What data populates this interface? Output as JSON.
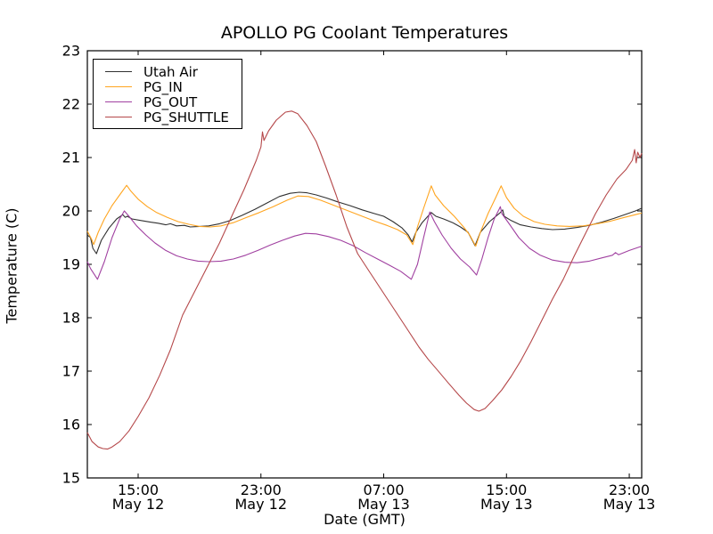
{
  "figure": {
    "background": "#ffffff"
  },
  "chart_data": {
    "type": "line",
    "title": "APOLLO PG Coolant Temperatures",
    "xlabel": "Date (GMT)",
    "ylabel": "Temperature (C)",
    "grid": false,
    "legend_position": "upper left",
    "x_unit": "hours since May 12 00:00 GMT",
    "x_range": [
      11.69,
      47.81
    ],
    "y_range": [
      15,
      23
    ],
    "y_ticks": [
      15,
      16,
      17,
      18,
      19,
      20,
      21,
      22,
      23
    ],
    "x_ticks": [
      {
        "value": 15,
        "time": "15:00",
        "date": "May 12"
      },
      {
        "value": 23,
        "time": "23:00",
        "date": "May 12"
      },
      {
        "value": 31,
        "time": "07:00",
        "date": "May 13"
      },
      {
        "value": 39,
        "time": "15:00",
        "date": "May 13"
      },
      {
        "value": 47,
        "time": "23:00",
        "date": "May 13"
      }
    ],
    "series": [
      {
        "name": "Utah Air",
        "color": "#303030",
        "points": [
          [
            11.69,
            19.55
          ],
          [
            11.9,
            19.5
          ],
          [
            12.05,
            19.3
          ],
          [
            12.28,
            19.2
          ],
          [
            12.6,
            19.45
          ],
          [
            13.1,
            19.68
          ],
          [
            13.6,
            19.85
          ],
          [
            14.0,
            19.93
          ],
          [
            14.15,
            19.88
          ],
          [
            14.3,
            19.9
          ],
          [
            14.6,
            19.85
          ],
          [
            15.2,
            19.82
          ],
          [
            15.8,
            19.79
          ],
          [
            16.3,
            19.77
          ],
          [
            16.8,
            19.74
          ],
          [
            17.1,
            19.76
          ],
          [
            17.5,
            19.72
          ],
          [
            18.0,
            19.73
          ],
          [
            18.4,
            19.7
          ],
          [
            19.0,
            19.71
          ],
          [
            19.6,
            19.72
          ],
          [
            20.3,
            19.76
          ],
          [
            21.0,
            19.82
          ],
          [
            21.8,
            19.92
          ],
          [
            22.6,
            20.03
          ],
          [
            23.4,
            20.15
          ],
          [
            24.2,
            20.27
          ],
          [
            24.9,
            20.33
          ],
          [
            25.5,
            20.35
          ],
          [
            26.0,
            20.34
          ],
          [
            26.6,
            20.3
          ],
          [
            27.3,
            20.24
          ],
          [
            28.0,
            20.17
          ],
          [
            28.8,
            20.1
          ],
          [
            29.6,
            20.02
          ],
          [
            30.4,
            19.95
          ],
          [
            31.0,
            19.9
          ],
          [
            31.6,
            19.8
          ],
          [
            32.2,
            19.68
          ],
          [
            32.6,
            19.55
          ],
          [
            32.85,
            19.42
          ],
          [
            33.1,
            19.6
          ],
          [
            33.5,
            19.78
          ],
          [
            34.1,
            19.97
          ],
          [
            34.4,
            19.9
          ],
          [
            34.9,
            19.85
          ],
          [
            35.5,
            19.78
          ],
          [
            36.0,
            19.7
          ],
          [
            36.5,
            19.6
          ],
          [
            36.95,
            19.35
          ],
          [
            37.3,
            19.6
          ],
          [
            37.9,
            19.8
          ],
          [
            38.6,
            19.97
          ],
          [
            38.75,
            20.02
          ],
          [
            38.85,
            19.9
          ],
          [
            39.3,
            19.82
          ],
          [
            39.9,
            19.74
          ],
          [
            40.6,
            19.7
          ],
          [
            41.3,
            19.67
          ],
          [
            42.0,
            19.65
          ],
          [
            42.8,
            19.66
          ],
          [
            43.6,
            19.69
          ],
          [
            44.4,
            19.73
          ],
          [
            45.2,
            19.79
          ],
          [
            46.0,
            19.86
          ],
          [
            46.8,
            19.94
          ],
          [
            47.4,
            20.0
          ],
          [
            47.81,
            20.05
          ]
        ]
      },
      {
        "name": "PG_IN",
        "color": "#ffa520",
        "points": [
          [
            11.69,
            19.62
          ],
          [
            11.95,
            19.48
          ],
          [
            12.1,
            19.37
          ],
          [
            12.4,
            19.6
          ],
          [
            12.8,
            19.85
          ],
          [
            13.3,
            20.1
          ],
          [
            13.8,
            20.3
          ],
          [
            14.25,
            20.48
          ],
          [
            14.5,
            20.38
          ],
          [
            15.0,
            20.22
          ],
          [
            15.6,
            20.08
          ],
          [
            16.2,
            19.97
          ],
          [
            16.9,
            19.88
          ],
          [
            17.6,
            19.8
          ],
          [
            18.3,
            19.75
          ],
          [
            19.0,
            19.71
          ],
          [
            19.7,
            19.7
          ],
          [
            20.4,
            19.72
          ],
          [
            21.2,
            19.78
          ],
          [
            22.0,
            19.87
          ],
          [
            22.9,
            19.97
          ],
          [
            23.8,
            20.08
          ],
          [
            24.7,
            20.2
          ],
          [
            25.4,
            20.28
          ],
          [
            26.1,
            20.27
          ],
          [
            26.9,
            20.2
          ],
          [
            27.8,
            20.1
          ],
          [
            28.7,
            20.0
          ],
          [
            29.6,
            19.9
          ],
          [
            30.5,
            19.8
          ],
          [
            31.2,
            19.73
          ],
          [
            31.9,
            19.65
          ],
          [
            32.5,
            19.55
          ],
          [
            32.9,
            19.37
          ],
          [
            33.2,
            19.7
          ],
          [
            33.6,
            20.05
          ],
          [
            34.1,
            20.47
          ],
          [
            34.35,
            20.3
          ],
          [
            34.9,
            20.1
          ],
          [
            35.6,
            19.9
          ],
          [
            36.2,
            19.7
          ],
          [
            36.6,
            19.55
          ],
          [
            37.0,
            19.34
          ],
          [
            37.3,
            19.6
          ],
          [
            37.8,
            19.95
          ],
          [
            38.3,
            20.25
          ],
          [
            38.65,
            20.47
          ],
          [
            39.0,
            20.25
          ],
          [
            39.5,
            20.05
          ],
          [
            40.1,
            19.9
          ],
          [
            40.8,
            19.8
          ],
          [
            41.5,
            19.75
          ],
          [
            42.3,
            19.72
          ],
          [
            43.1,
            19.71
          ],
          [
            44.0,
            19.72
          ],
          [
            44.9,
            19.76
          ],
          [
            45.8,
            19.81
          ],
          [
            46.7,
            19.88
          ],
          [
            47.4,
            19.93
          ],
          [
            47.81,
            19.96
          ]
        ]
      },
      {
        "name": "PG_OUT",
        "color": "#a040a0",
        "points": [
          [
            11.69,
            19.05
          ],
          [
            11.9,
            18.92
          ],
          [
            12.35,
            18.72
          ],
          [
            12.8,
            19.05
          ],
          [
            13.3,
            19.5
          ],
          [
            13.8,
            19.85
          ],
          [
            14.1,
            20.0
          ],
          [
            14.4,
            19.9
          ],
          [
            14.9,
            19.72
          ],
          [
            15.5,
            19.55
          ],
          [
            16.1,
            19.4
          ],
          [
            16.8,
            19.26
          ],
          [
            17.5,
            19.16
          ],
          [
            18.2,
            19.1
          ],
          [
            18.9,
            19.06
          ],
          [
            19.6,
            19.05
          ],
          [
            20.4,
            19.06
          ],
          [
            21.2,
            19.1
          ],
          [
            22.0,
            19.17
          ],
          [
            22.8,
            19.26
          ],
          [
            23.6,
            19.36
          ],
          [
            24.4,
            19.45
          ],
          [
            25.2,
            19.53
          ],
          [
            25.9,
            19.58
          ],
          [
            26.6,
            19.57
          ],
          [
            27.4,
            19.52
          ],
          [
            28.2,
            19.45
          ],
          [
            29.0,
            19.35
          ],
          [
            29.8,
            19.22
          ],
          [
            30.6,
            19.1
          ],
          [
            31.4,
            18.98
          ],
          [
            32.1,
            18.87
          ],
          [
            32.8,
            18.72
          ],
          [
            33.2,
            19.0
          ],
          [
            33.6,
            19.5
          ],
          [
            34.0,
            19.98
          ],
          [
            34.3,
            19.8
          ],
          [
            34.8,
            19.55
          ],
          [
            35.4,
            19.3
          ],
          [
            36.0,
            19.1
          ],
          [
            36.6,
            18.95
          ],
          [
            37.05,
            18.8
          ],
          [
            37.4,
            19.1
          ],
          [
            37.8,
            19.5
          ],
          [
            38.2,
            19.85
          ],
          [
            38.5,
            20.02
          ],
          [
            38.6,
            20.08
          ],
          [
            38.7,
            19.95
          ],
          [
            39.2,
            19.75
          ],
          [
            39.8,
            19.5
          ],
          [
            40.5,
            19.3
          ],
          [
            41.2,
            19.17
          ],
          [
            42.0,
            19.08
          ],
          [
            42.8,
            19.04
          ],
          [
            43.6,
            19.03
          ],
          [
            44.4,
            19.06
          ],
          [
            45.2,
            19.12
          ],
          [
            45.9,
            19.17
          ],
          [
            46.1,
            19.22
          ],
          [
            46.3,
            19.18
          ],
          [
            47.0,
            19.26
          ],
          [
            47.81,
            19.34
          ]
        ]
      },
      {
        "name": "PG_SHUTTLE",
        "color": "#b5484a",
        "points": [
          [
            11.69,
            15.85
          ],
          [
            12.0,
            15.68
          ],
          [
            12.4,
            15.58
          ],
          [
            12.7,
            15.55
          ],
          [
            13.0,
            15.54
          ],
          [
            13.3,
            15.58
          ],
          [
            13.8,
            15.68
          ],
          [
            14.4,
            15.88
          ],
          [
            15.0,
            16.15
          ],
          [
            15.7,
            16.5
          ],
          [
            16.4,
            16.92
          ],
          [
            17.1,
            17.4
          ],
          [
            17.9,
            18.05
          ],
          [
            18.7,
            18.5
          ],
          [
            19.5,
            18.95
          ],
          [
            20.3,
            19.4
          ],
          [
            21.1,
            19.9
          ],
          [
            21.9,
            20.4
          ],
          [
            22.7,
            20.95
          ],
          [
            23.0,
            21.2
          ],
          [
            23.1,
            21.48
          ],
          [
            23.2,
            21.32
          ],
          [
            23.5,
            21.5
          ],
          [
            24.0,
            21.7
          ],
          [
            24.6,
            21.85
          ],
          [
            25.0,
            21.87
          ],
          [
            25.4,
            21.82
          ],
          [
            26.0,
            21.6
          ],
          [
            26.6,
            21.3
          ],
          [
            27.2,
            20.85
          ],
          [
            27.9,
            20.3
          ],
          [
            28.6,
            19.7
          ],
          [
            29.3,
            19.2
          ],
          [
            30.1,
            18.85
          ],
          [
            30.9,
            18.5
          ],
          [
            31.7,
            18.15
          ],
          [
            32.5,
            17.8
          ],
          [
            33.3,
            17.45
          ],
          [
            33.9,
            17.22
          ],
          [
            34.5,
            17.02
          ],
          [
            35.2,
            16.78
          ],
          [
            35.9,
            16.55
          ],
          [
            36.4,
            16.4
          ],
          [
            36.9,
            16.28
          ],
          [
            37.2,
            16.25
          ],
          [
            37.6,
            16.3
          ],
          [
            38.1,
            16.45
          ],
          [
            38.7,
            16.65
          ],
          [
            39.3,
            16.9
          ],
          [
            39.9,
            17.18
          ],
          [
            40.6,
            17.55
          ],
          [
            41.3,
            17.95
          ],
          [
            42.0,
            18.35
          ],
          [
            42.7,
            18.72
          ],
          [
            43.4,
            19.15
          ],
          [
            44.1,
            19.55
          ],
          [
            44.8,
            19.95
          ],
          [
            45.5,
            20.3
          ],
          [
            46.2,
            20.6
          ],
          [
            46.8,
            20.78
          ],
          [
            47.2,
            20.95
          ],
          [
            47.35,
            21.15
          ],
          [
            47.45,
            20.9
          ],
          [
            47.55,
            21.1
          ],
          [
            47.7,
            21.0
          ],
          [
            47.81,
            21.08
          ]
        ]
      }
    ]
  }
}
